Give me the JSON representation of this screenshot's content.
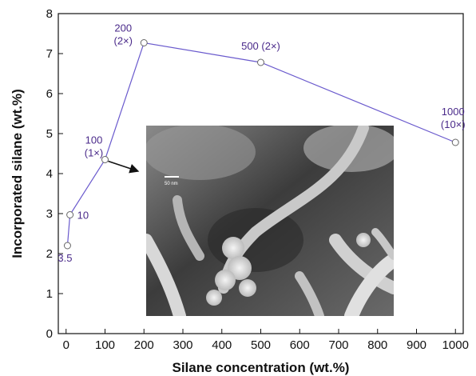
{
  "chart_data": {
    "type": "line",
    "title": "",
    "xlabel": "Silane concentration (wt.%)",
    "ylabel": "Incorporated silane (wt.%)",
    "xlim": [
      -20,
      1020
    ],
    "ylim": [
      0,
      8
    ],
    "x_ticks": [
      0,
      100,
      200,
      300,
      400,
      500,
      600,
      700,
      800,
      900,
      1000
    ],
    "y_ticks": [
      0,
      1,
      2,
      3,
      4,
      5,
      6,
      7,
      8
    ],
    "grid": false,
    "line_color": "#6a5acd",
    "label_color": "#4a2a8a",
    "series": [
      {
        "values": [
          {
            "x": 3.5,
            "y": 2.2,
            "label": "3.5"
          },
          {
            "x": 10,
            "y": 2.97,
            "label": "10"
          },
          {
            "x": 100,
            "y": 4.35,
            "label": "100\n(1×)"
          },
          {
            "x": 200,
            "y": 7.27,
            "label": "200\n(2×)"
          },
          {
            "x": 500,
            "y": 6.78,
            "label": "500 (2×)"
          },
          {
            "x": 1000,
            "y": 4.78,
            "label": "1000\n(10×)"
          }
        ]
      }
    ],
    "inset": {
      "scale_bar_label": "50 nm",
      "arrow_from_x": 100
    }
  }
}
